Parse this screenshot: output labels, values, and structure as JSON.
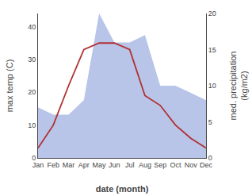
{
  "chart_data": {
    "type": "line",
    "categories": [
      "Jan",
      "Feb",
      "Mar",
      "Apr",
      "May",
      "Jun",
      "Jul",
      "Aug",
      "Sep",
      "Oct",
      "Nov",
      "Dec"
    ],
    "series": [
      {
        "type": "area",
        "axis": "y2",
        "color": "#b8c4e8",
        "values": [
          7,
          6,
          6,
          8,
          20,
          16,
          16,
          17,
          10,
          10,
          9,
          8
        ]
      },
      {
        "type": "line",
        "axis": "y",
        "color": "#b03030",
        "values": [
          3,
          10,
          22,
          33,
          35,
          35,
          33,
          19,
          16,
          10,
          6,
          3
        ]
      }
    ],
    "xlabel": "date (month)",
    "ylabel": "max temp (C)",
    "y2label": "med. precipitation\n(kg/m2)",
    "ylim": [
      0,
      44
    ],
    "yticks": [
      0,
      10,
      20,
      30,
      40
    ],
    "y2lim": [
      0,
      20
    ],
    "y2ticks": [
      0,
      5,
      10,
      15,
      20
    ],
    "grid": false
  }
}
